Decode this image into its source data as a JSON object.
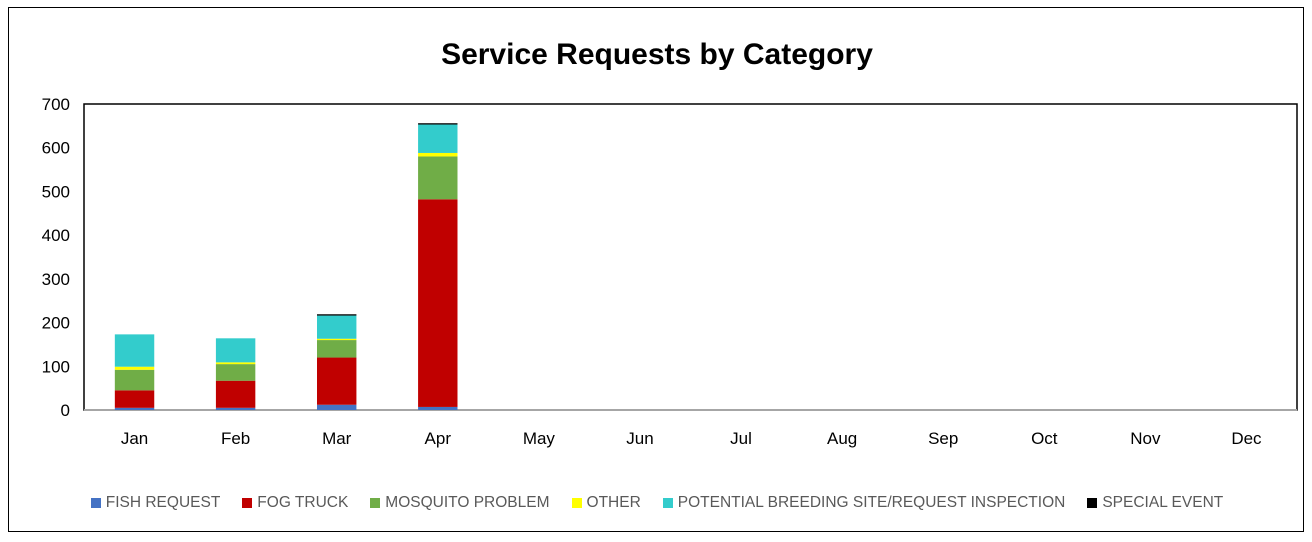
{
  "chart_data": {
    "type": "bar",
    "stacked": true,
    "title": "Service Requests by Category",
    "xlabel": "",
    "ylabel": "",
    "ylim": [
      0,
      700
    ],
    "yticks": [
      0,
      100,
      200,
      300,
      400,
      500,
      600,
      700
    ],
    "categories": [
      "Jan",
      "Feb",
      "Mar",
      "Apr",
      "May",
      "Jun",
      "Jul",
      "Aug",
      "Sep",
      "Oct",
      "Nov",
      "Dec"
    ],
    "series": [
      {
        "name": "FISH REQUEST",
        "color": "#4472C4",
        "values": [
          5,
          5,
          12,
          7,
          0,
          0,
          0,
          0,
          0,
          0,
          0,
          0
        ]
      },
      {
        "name": "FOG TRUCK",
        "color": "#C00000",
        "values": [
          40,
          62,
          108,
          475,
          0,
          0,
          0,
          0,
          0,
          0,
          0,
          0
        ]
      },
      {
        "name": "MOSQUITO PROBLEM",
        "color": "#70AD47",
        "values": [
          47,
          38,
          40,
          98,
          0,
          0,
          0,
          0,
          0,
          0,
          0,
          0
        ]
      },
      {
        "name": "OTHER",
        "color": "#FFFF00",
        "values": [
          7,
          4,
          3,
          8,
          0,
          0,
          0,
          0,
          0,
          0,
          0,
          0
        ]
      },
      {
        "name": "POTENTIAL BREEDING SITE/REQUEST INSPECTION",
        "color": "#33CCCC",
        "values": [
          74,
          55,
          53,
          65,
          0,
          0,
          0,
          0,
          0,
          0,
          0,
          0
        ]
      },
      {
        "name": "SPECIAL EVENT",
        "color": "#000000",
        "values": [
          0,
          0,
          3,
          3,
          0,
          0,
          0,
          0,
          0,
          0,
          0,
          0
        ]
      }
    ],
    "legend_position": "bottom",
    "grid": false
  }
}
